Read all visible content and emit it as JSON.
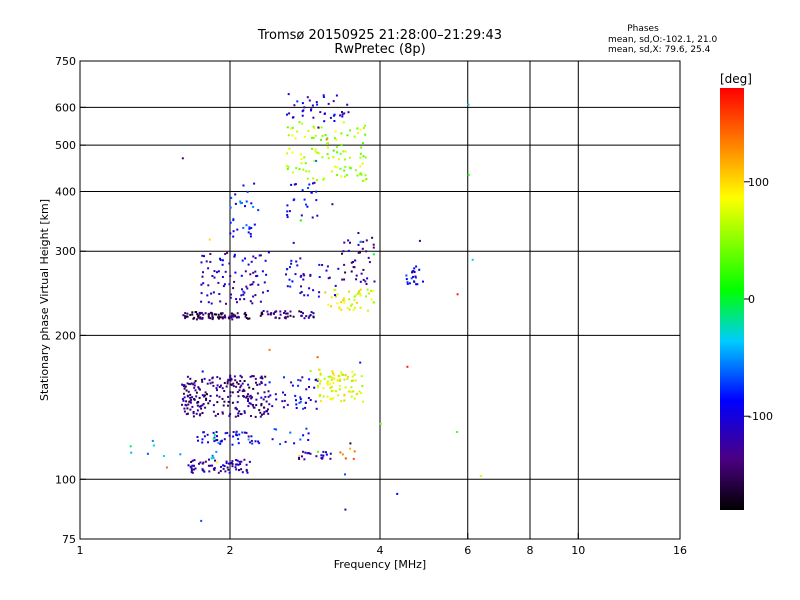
{
  "chart_data": {
    "type": "scatter",
    "title": "Tromsø 20150925 21:28:00–21:29:43",
    "subtitle": "RwPretec (8p)",
    "xlabel": "Frequency [MHz]",
    "ylabel": "Stationary phase Virtual Height [km]",
    "x_scale": "log",
    "y_scale": "log",
    "xlim": [
      1,
      16
    ],
    "ylim": [
      75,
      750
    ],
    "x_ticks": [
      1,
      2,
      4,
      6,
      8,
      10,
      16
    ],
    "y_ticks": [
      75,
      100,
      200,
      300,
      400,
      500,
      600,
      750
    ],
    "x_gridlines": [
      2,
      4,
      6,
      8,
      10
    ],
    "y_gridlines": [
      100,
      200,
      300,
      400,
      500,
      600
    ],
    "grid": true,
    "legend": {
      "title": "Phases",
      "lines": [
        "mean, sd,O:-102.1, 21.0",
        "mean, sd,X:  79.6, 25.4"
      ],
      "position": "top-right"
    },
    "colorbar": {
      "label": "[deg]",
      "range": [
        -180,
        180
      ],
      "ticks": [
        100,
        0,
        -100
      ]
    },
    "clusters": [
      {
        "fmin": 1.65,
        "fmax": 2.2,
        "hmin": 103,
        "hmax": 110,
        "phase": -120,
        "n": 70
      },
      {
        "fmin": 2.75,
        "fmax": 3.2,
        "hmin": 110,
        "hmax": 116,
        "phase": -110,
        "n": 20
      },
      {
        "fmin": 3.3,
        "fmax": 3.6,
        "hmin": 110,
        "hmax": 116,
        "phase": 130,
        "n": 6
      },
      {
        "fmin": 1.7,
        "fmax": 2.3,
        "hmin": 118,
        "hmax": 126,
        "phase": -100,
        "n": 45
      },
      {
        "fmin": 2.3,
        "fmax": 2.9,
        "hmin": 118,
        "hmax": 128,
        "phase": -90,
        "n": 12
      },
      {
        "fmin": 1.6,
        "fmax": 2.4,
        "hmin": 135,
        "hmax": 165,
        "phase": -135,
        "n": 230
      },
      {
        "fmin": 2.4,
        "fmax": 3.0,
        "hmin": 140,
        "hmax": 165,
        "phase": -95,
        "n": 40
      },
      {
        "fmin": 3.0,
        "fmax": 3.7,
        "hmin": 145,
        "hmax": 170,
        "phase": 80,
        "n": 80
      },
      {
        "fmin": 1.6,
        "fmax": 2.2,
        "hmin": 216,
        "hmax": 224,
        "phase": -150,
        "n": 80
      },
      {
        "fmin": 2.3,
        "fmax": 3.0,
        "hmin": 217,
        "hmax": 225,
        "phase": -135,
        "n": 45
      },
      {
        "fmin": 3.1,
        "fmax": 3.9,
        "hmin": 225,
        "hmax": 250,
        "phase": 80,
        "n": 45
      },
      {
        "fmin": 1.75,
        "fmax": 2.4,
        "hmin": 230,
        "hmax": 300,
        "phase": -115,
        "n": 90
      },
      {
        "fmin": 2.5,
        "fmax": 3.3,
        "hmin": 240,
        "hmax": 290,
        "phase": -105,
        "n": 40
      },
      {
        "fmin": 3.35,
        "fmax": 3.9,
        "hmin": 255,
        "hmax": 330,
        "phase": -130,
        "n": 40
      },
      {
        "fmin": 4.5,
        "fmax": 4.9,
        "hmin": 255,
        "hmax": 280,
        "phase": -95,
        "n": 22
      },
      {
        "fmin": 2.0,
        "fmax": 2.3,
        "hmin": 320,
        "hmax": 420,
        "phase": -80,
        "n": 30
      },
      {
        "fmin": 2.6,
        "fmax": 3.0,
        "hmin": 350,
        "hmax": 420,
        "phase": -95,
        "n": 25
      },
      {
        "fmin": 2.6,
        "fmax": 3.8,
        "hmin": 420,
        "hmax": 560,
        "phase": 60,
        "n": 110
      },
      {
        "fmin": 2.6,
        "fmax": 3.5,
        "hmin": 560,
        "hmax": 640,
        "phase": -105,
        "n": 40
      },
      {
        "fmin": 1.2,
        "fmax": 1.9,
        "hmin": 110,
        "hmax": 125,
        "phase": -40,
        "n": 14
      },
      {
        "fmin": 1.4,
        "fmax": 6.8,
        "hmin": 78,
        "hmax": 700,
        "phase": 0,
        "n": 40
      }
    ]
  }
}
